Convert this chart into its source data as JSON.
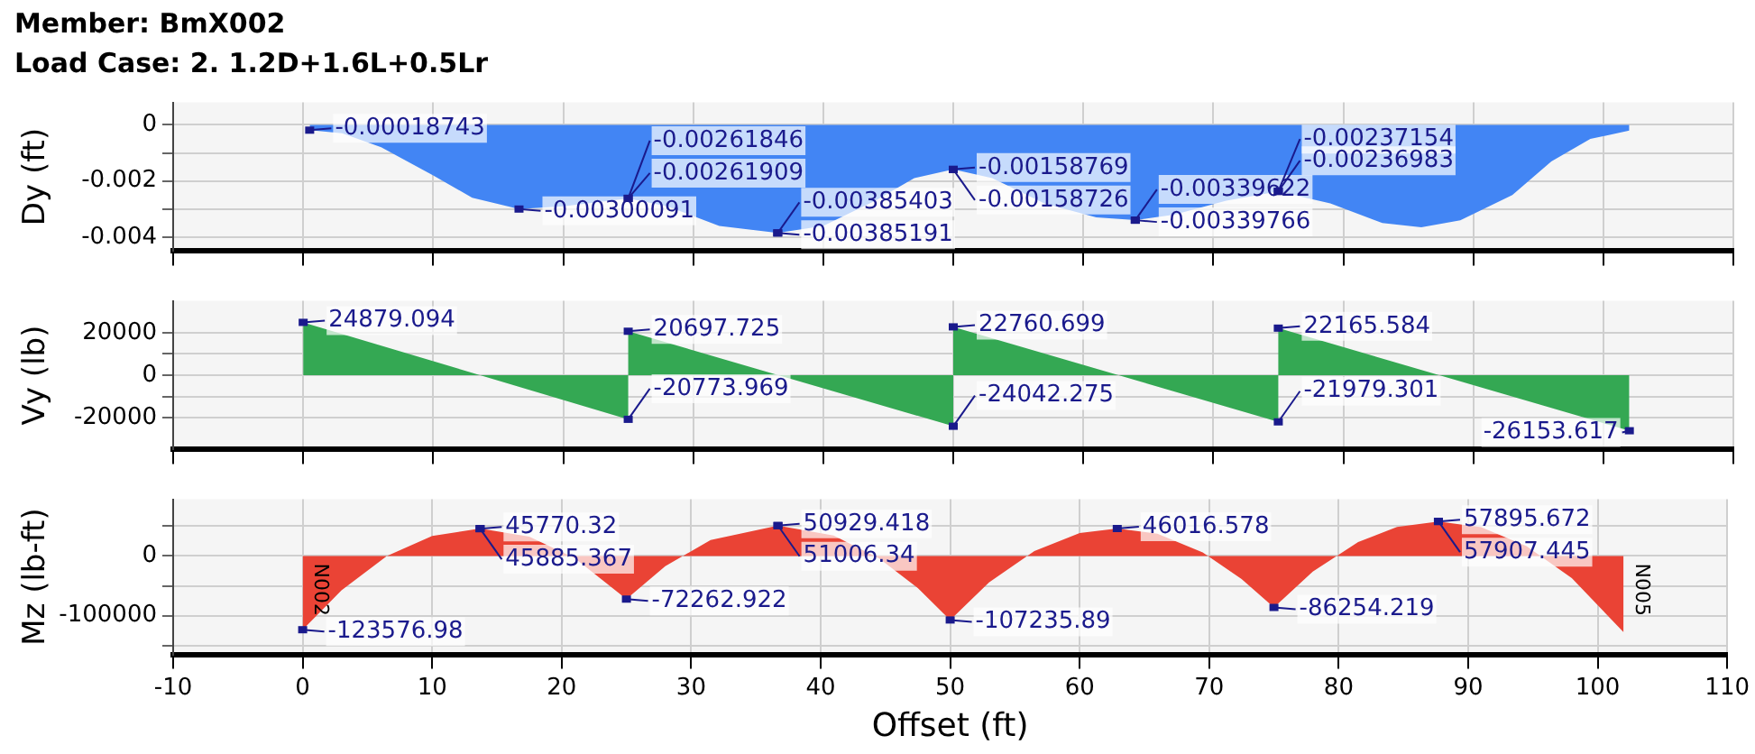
{
  "chart_data": [
    {
      "type": "area",
      "title": "Member: BmX002",
      "subtitle": "Load Case: 2. 1.2D+1.6L+0.5Lr",
      "ylabel": "Dy (ft)",
      "color": "#4285f4",
      "grid": true,
      "tick_labels": "y",
      "x": [
        0.5,
        3,
        6,
        10,
        13,
        16.6,
        20,
        25,
        28,
        32,
        36.5,
        40,
        44,
        47,
        50,
        53,
        57,
        61,
        64,
        67,
        71,
        75,
        79,
        83,
        86,
        89,
        93,
        96,
        99,
        102
      ],
      "values": [
        -0.00018743,
        -0.0003,
        -0.0008,
        -0.0018,
        -0.0026,
        -0.00300091,
        -0.0029,
        -0.00261846,
        -0.0029,
        -0.0036,
        -0.00385403,
        -0.0036,
        -0.0027,
        -0.0019,
        -0.00158769,
        -0.0019,
        -0.0028,
        -0.0033,
        -0.00339622,
        -0.0032,
        -0.0027,
        -0.00237154,
        -0.0028,
        -0.0035,
        -0.00365,
        -0.0034,
        -0.0025,
        -0.0013,
        -0.0005,
        -0.0002
      ],
      "xlim": [
        -10,
        110
      ],
      "xticks": [
        -10,
        0,
        10,
        20,
        30,
        40,
        50,
        60,
        70,
        80,
        90,
        100,
        110
      ],
      "ylim": [
        -0.0045,
        0.0008
      ],
      "yticks": [
        {
          "value": -0.004,
          "label": "-0.004"
        },
        {
          "value": -0.003,
          "label": null
        },
        {
          "value": -0.002,
          "label": "-0.002"
        },
        {
          "value": -0.001,
          "label": null
        },
        0
      ],
      "annotations": [
        {
          "text": "-0.00018743",
          "x": 0.5,
          "y": -0.00018743
        },
        {
          "text": "-0.00300091",
          "x": 16.6,
          "y": -0.00300091
        },
        {
          "text": "-0.00261909",
          "x": 25,
          "y": -0.00261909
        },
        {
          "text": "-0.00261846",
          "x": 25,
          "y": -0.00261846
        },
        {
          "text": "-0.00385191",
          "x": 36.5,
          "y": -0.00385191
        },
        {
          "text": "-0.00385403",
          "x": 36.5,
          "y": -0.00385403
        },
        {
          "text": "-0.00158769",
          "x": 50,
          "y": -0.00158769
        },
        {
          "text": "-0.00158726",
          "x": 50,
          "y": -0.00158726
        },
        {
          "text": "-0.00339766",
          "x": 64,
          "y": -0.00339766
        },
        {
          "text": "-0.00339622",
          "x": 64,
          "y": -0.00339622
        },
        {
          "text": "-0.00237154",
          "x": 75,
          "y": -0.00237154
        },
        {
          "text": "-0.00236983",
          "x": 75,
          "y": -0.00236983
        }
      ]
    },
    {
      "type": "area",
      "ylabel": "Vy (lb)",
      "color": "#34a853",
      "grid": true,
      "tick_labels": "y",
      "x": [
        0,
        25,
        25,
        50,
        50,
        75,
        75,
        102
      ],
      "values": [
        24879.094,
        -20773.969,
        20697.725,
        -24042.275,
        22760.699,
        -21979.301,
        22165.584,
        -26153.617
      ],
      "xlim": [
        -10,
        110
      ],
      "xticks": [
        -10,
        0,
        10,
        20,
        30,
        40,
        50,
        60,
        70,
        80,
        90,
        100,
        110
      ],
      "ylim": [
        -35000,
        35000
      ],
      "yticks": [
        -20000,
        {
          "value": -10000,
          "label": null
        },
        0,
        {
          "value": 10000,
          "label": null
        },
        20000
      ],
      "annotations": [
        {
          "text": "24879.094",
          "x": 0,
          "y": 24879.094
        },
        {
          "text": "20697.725",
          "x": 25,
          "y": 20697.725
        },
        {
          "text": "-20773.969",
          "x": 25,
          "y": -20773.969
        },
        {
          "text": "22760.699",
          "x": 50,
          "y": 22760.699
        },
        {
          "text": "-24042.275",
          "x": 50,
          "y": -24042.275
        },
        {
          "text": "22165.584",
          "x": 75,
          "y": 22165.584
        },
        {
          "text": "-21979.301",
          "x": 75,
          "y": -21979.301
        },
        {
          "text": "-26153.617",
          "x": 102,
          "y": -26153.617
        }
      ]
    },
    {
      "type": "area",
      "ylabel": "Mz (lb-ft)",
      "xlabel": "Offset (ft)",
      "color": "#ea4335",
      "grid": true,
      "x": [
        0,
        3,
        6.5,
        10,
        13.7,
        17.5,
        21,
        25,
        28,
        31.5,
        36.7,
        41,
        44.5,
        47.5,
        50,
        53,
        56.5,
        60,
        62.9,
        66,
        69.5,
        72.5,
        75,
        78,
        81.5,
        84.5,
        87.7,
        91,
        94.5,
        98,
        102
      ],
      "values": [
        -123576.98,
        -57500,
        0,
        33500,
        45885.367,
        32500,
        -3400,
        -72262.922,
        -17100,
        26700,
        51006.34,
        34350,
        -3700,
        -53900,
        -107235.89,
        -44200,
        8250,
        38280,
        46016.578,
        37170,
        5860,
        -38700,
        -86254.219,
        -26300,
        23500,
        48700,
        57907.445,
        48150,
        16500,
        -37050,
        -128000
      ],
      "xlim": [
        -10,
        110
      ],
      "xticks": [
        -10,
        0,
        10,
        20,
        30,
        40,
        50,
        60,
        70,
        80,
        90,
        100,
        110
      ],
      "ylim": [
        -165000,
        95000
      ],
      "yticks": [
        {
          "value": -150000,
          "label": null
        },
        -100000,
        {
          "value": -50000,
          "label": null
        },
        0,
        {
          "value": 50000,
          "label": null
        }
      ],
      "annotations": [
        {
          "text": "N002",
          "x": 0
        },
        {
          "text": "N005",
          "x": 102
        },
        {
          "text": "-123576.98",
          "x": 0,
          "y": -123576.98
        },
        {
          "text": "45770.32",
          "x": 13.7,
          "y": 45770.32
        },
        {
          "text": "45885.367",
          "x": 13.7,
          "y": 45885.367
        },
        {
          "text": "-72262.922",
          "x": 25,
          "y": -72262.922
        },
        {
          "text": "50929.418",
          "x": 36.7,
          "y": 50929.418
        },
        {
          "text": "51006.34",
          "x": 36.7,
          "y": 51006.34
        },
        {
          "text": "-107235.89",
          "x": 50,
          "y": -107235.89
        },
        {
          "text": "46016.578",
          "x": 62.9,
          "y": 46016.578
        },
        {
          "text": "-86254.219",
          "x": 75,
          "y": -86254.219
        },
        {
          "text": "57895.672",
          "x": 87.7,
          "y": 57895.672
        },
        {
          "text": "57907.445",
          "x": 87.7,
          "y": 57907.445
        }
      ]
    }
  ]
}
